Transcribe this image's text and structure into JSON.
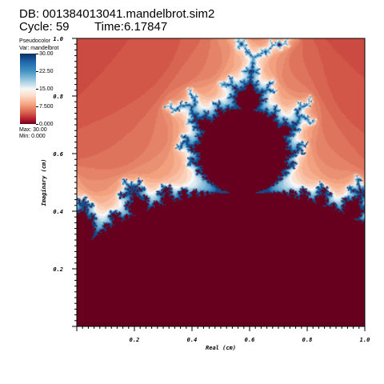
{
  "header": {
    "db": "DB: 001384013041.mandelbrot.sim2",
    "cycle": "Cycle: 59",
    "time": "Time:6.17847"
  },
  "legend": {
    "title": "Pseudocolor",
    "var": "Var: mandelbrot",
    "ticks": [
      "30.00",
      "22.50",
      "15.00",
      "7.500",
      "0.000"
    ],
    "max": "Max: 30.00",
    "min": "Min: 0.000"
  },
  "colors": {
    "interior": "#67001f",
    "low": "#b2182b",
    "mid": "#f7f7f7",
    "high": "#053061"
  },
  "chart_data": {
    "type": "heatmap",
    "title": "",
    "xlabel": "Real (cm)",
    "ylabel": "Imaginary (cm)",
    "xlim": [
      0.0,
      1.0
    ],
    "ylim": [
      0.0,
      1.0
    ],
    "xticks": [
      "0.2",
      "0.4",
      "0.6",
      "0.8",
      "1.0"
    ],
    "yticks": [
      "0.2",
      "0.4",
      "0.6",
      "0.8",
      "1.0"
    ],
    "color_range": [
      0.0,
      30.0
    ],
    "variable": "mandelbrot",
    "grid": false
  }
}
